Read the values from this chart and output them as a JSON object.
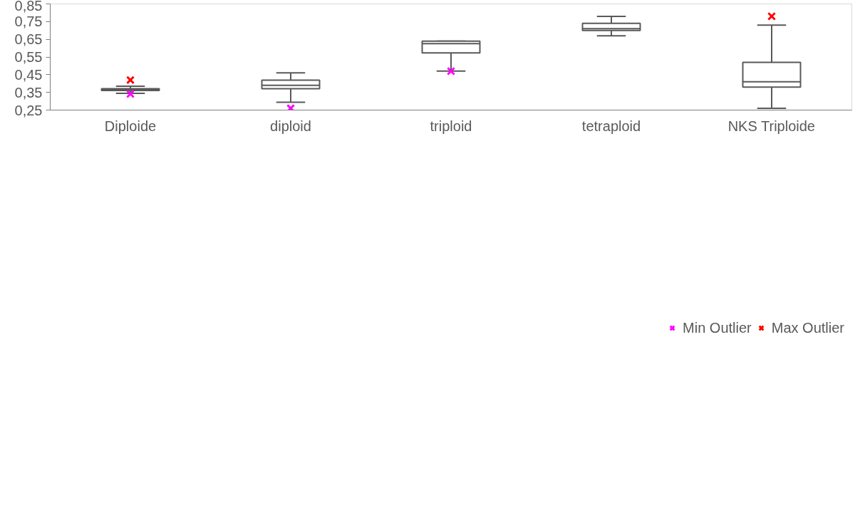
{
  "chart_data": {
    "type": "box",
    "categories": [
      "Diploide",
      "diploid",
      "triploid",
      "tetraploid",
      "NKS Triploide"
    ],
    "ylim": [
      0.25,
      0.85
    ],
    "yticks": [
      {
        "value": 0.25,
        "label": "0,25"
      },
      {
        "value": 0.35,
        "label": "0,35"
      },
      {
        "value": 0.45,
        "label": "0,45"
      },
      {
        "value": 0.55,
        "label": "0,55"
      },
      {
        "value": 0.65,
        "label": "0,65"
      },
      {
        "value": 0.75,
        "label": "0,75"
      },
      {
        "value": 0.85,
        "label": "0,85"
      }
    ],
    "grid": false,
    "legend": "bottom",
    "marker": "cross",
    "series": [
      {
        "color": "#595959",
        "boxes": [
          {
            "low": 0.345,
            "q1": 0.361,
            "median": 0.366,
            "q3": 0.371,
            "high": 0.385
          },
          {
            "low": 0.294,
            "q1": 0.371,
            "median": 0.39,
            "q3": 0.419,
            "high": 0.46
          },
          {
            "low": 0.47,
            "q1": 0.573,
            "median": 0.626,
            "q3": 0.64,
            "high": 0.64
          },
          {
            "low": 0.67,
            "q1": 0.7,
            "median": 0.71,
            "q3": 0.74,
            "high": 0.78
          },
          {
            "low": 0.26,
            "q1": 0.38,
            "median": 0.41,
            "q3": 0.52,
            "high": 0.73
          }
        ]
      },
      {
        "type": "scatter",
        "name": "Min Outlier",
        "color": "#ff00ff",
        "x": [
          "Diploide",
          "diploid",
          "triploid"
        ],
        "values": [
          0.341,
          0.26,
          0.47
        ]
      },
      {
        "type": "scatter",
        "name": "Max Outlier",
        "color": "#ff0000",
        "x": [
          "Diploide",
          "NKS Triploide"
        ],
        "values": [
          0.42,
          0.78
        ]
      }
    ]
  }
}
